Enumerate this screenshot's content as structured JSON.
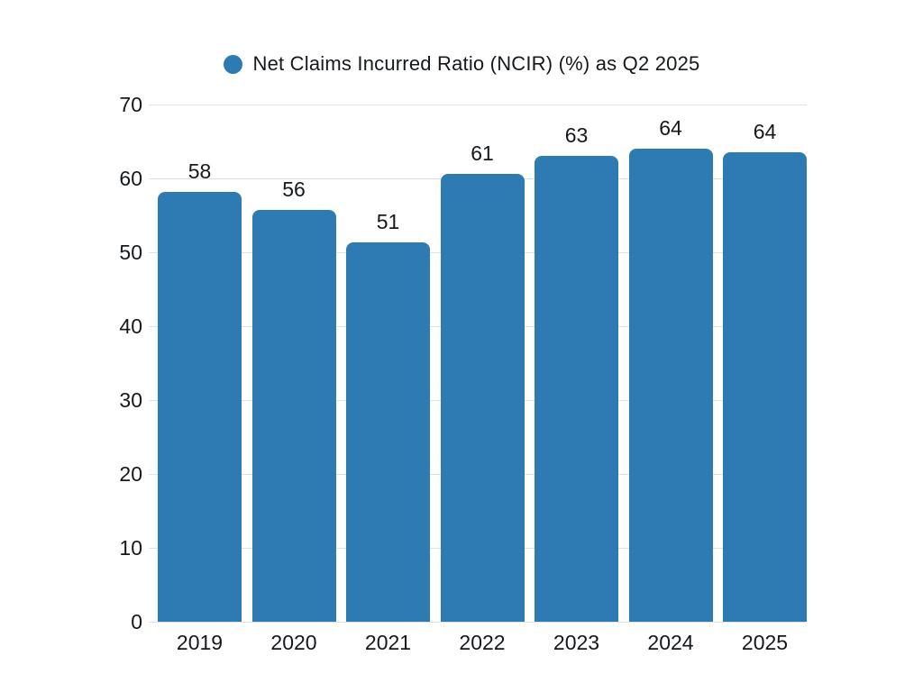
{
  "legend": {
    "marker": "circle",
    "position": "top-center"
  },
  "chart_data": {
    "type": "bar",
    "title": "Net Claims Incurred Ratio (NCIR) (%) as Q2 2025",
    "series_name": "Net Claims Incurred Ratio (NCIR) (%) as Q2 2025",
    "categories": [
      "2019",
      "2020",
      "2021",
      "2022",
      "2023",
      "2024",
      "2025"
    ],
    "values": [
      58,
      56,
      51,
      61,
      63,
      64,
      64
    ],
    "data_labels": [
      "58",
      "56",
      "51",
      "61",
      "63",
      "64",
      "64"
    ],
    "bar_heights_precise": [
      58.2,
      55.7,
      51.3,
      60.6,
      63.0,
      64.0,
      63.5
    ],
    "xlabel": "",
    "ylabel": "",
    "ylim": [
      0,
      70
    ],
    "yticks": [
      0,
      10,
      20,
      30,
      40,
      50,
      60,
      70
    ],
    "grid": "horizontal",
    "legend_position": "top-center",
    "colors": {
      "bar": "#2e7bb4",
      "gridline": "#e2e2e6",
      "text": "#16191c",
      "background": "#ffffff"
    }
  }
}
